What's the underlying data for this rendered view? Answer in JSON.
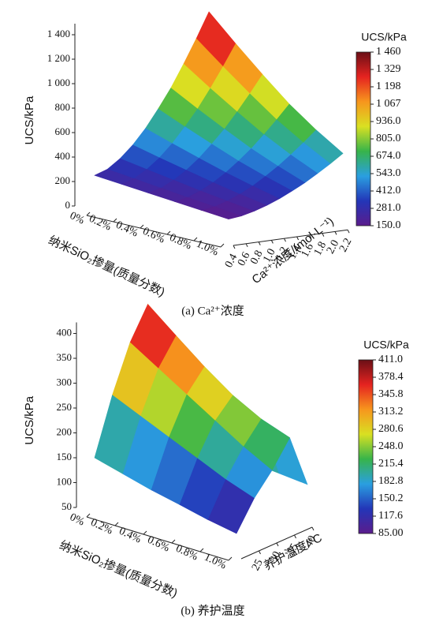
{
  "chart_data": [
    {
      "type": "surface",
      "title": "(a) Ca²⁺浓度",
      "x_label": "纳米SiO₂掺量(质量分数)",
      "y_label": "Ca²⁺浓度/(mol·L⁻¹)",
      "z_label": "UCS/kPa",
      "colorbar_title": "UCS/kPa",
      "x": [
        0,
        0.2,
        0.4,
        0.6,
        0.8,
        1.0
      ],
      "y": [
        0.4,
        0.6,
        0.8,
        1.0,
        1.2,
        1.4,
        1.6,
        1.8,
        2.0,
        2.2
      ],
      "values": [
        [
          250,
          230,
          210,
          190,
          170,
          150
        ],
        [
          286,
          261,
          235,
          210,
          186,
          162
        ],
        [
          359,
          322,
          286,
          250,
          218,
          187
        ],
        [
          456,
          403,
          353,
          304,
          260,
          220
        ],
        [
          577,
          505,
          437,
          371,
          313,
          261
        ],
        [
          722,
          628,
          538,
          451,
          377,
          310
        ],
        [
          879,
          760,
          647,
          538,
          446,
          363
        ],
        [
          1061,
          913,
          773,
          639,
          525,
          425
        ],
        [
          1254,
          1077,
          907,
          746,
          610,
          490
        ],
        [
          1460,
          1250,
          1050,
          860,
          700,
          560
        ]
      ],
      "xlim": [
        0,
        1.0
      ],
      "xticks": [
        {
          "value": 0,
          "label": "0%"
        },
        {
          "value": 0.2,
          "label": "0.2%"
        },
        {
          "value": 0.4,
          "label": "0.4%"
        },
        {
          "value": 0.6,
          "label": "0.6%"
        },
        {
          "value": 0.8,
          "label": "0.8%"
        },
        {
          "value": 1.0,
          "label": "1.0%"
        }
      ],
      "ylim": [
        0.4,
        2.2
      ],
      "yticks": [
        0.4,
        0.6,
        0.8,
        {
          "value": 1.0,
          "label": "1.0"
        },
        1.2,
        1.4,
        1.6,
        1.8,
        {
          "value": 2.0,
          "label": "2.0"
        },
        2.2
      ],
      "zlim": [
        0,
        1500
      ],
      "zticks": [
        0,
        200,
        400,
        600,
        800,
        {
          "value": 1000,
          "label": "1 000"
        },
        {
          "value": 1200,
          "label": "1 200"
        },
        {
          "value": 1400,
          "label": "1 400"
        }
      ],
      "clim": [
        150,
        1460
      ],
      "cticks": [
        {
          "value": 1460,
          "label": "1 460"
        },
        {
          "value": 1329,
          "label": "1 329"
        },
        {
          "value": 1198,
          "label": "1 198"
        },
        {
          "value": 1067,
          "label": "1 067"
        },
        {
          "value": 936,
          "label": "936.0"
        },
        {
          "value": 805,
          "label": "805.0"
        },
        {
          "value": 674,
          "label": "674.0"
        },
        {
          "value": 543,
          "label": "543.0"
        },
        {
          "value": 412,
          "label": "412.0"
        },
        {
          "value": 281,
          "label": "281.0"
        },
        {
          "value": 150,
          "label": "150.0"
        }
      ],
      "colormap": [
        "#5a1c8c",
        "#2336b8",
        "#2a9fe0",
        "#37b44a",
        "#d9e022",
        "#f7961d",
        "#e52320",
        "#6a0f16"
      ]
    },
    {
      "type": "surface",
      "title": "(b) 养护温度",
      "x_label": "纳米SiO₂掺量(质量分数)",
      "y_label": "养护温度/°C",
      "z_label": "UCS/kPa",
      "colorbar_title": "UCS/kPa",
      "x": [
        0,
        0.2,
        0.4,
        0.6,
        0.8,
        1.0
      ],
      "y": [
        20,
        25,
        30,
        35,
        40
      ],
      "values": [
        [
          150,
          135,
          120,
          108,
          95,
          85
        ],
        [
          260,
          235,
          210,
          185,
          160,
          140
        ],
        [
          350,
          315,
          280,
          245,
          210,
          180
        ],
        [
          411,
          365,
          320,
          280,
          250,
          230
        ],
        [
          160,
          150,
          140,
          130,
          125,
          120
        ]
      ],
      "xlim": [
        0,
        1.0
      ],
      "xticks": [
        {
          "value": 0,
          "label": "0%"
        },
        {
          "value": 0.2,
          "label": "0.2%"
        },
        {
          "value": 0.4,
          "label": "0.4%"
        },
        {
          "value": 0.6,
          "label": "0.6%"
        },
        {
          "value": 0.8,
          "label": "0.8%"
        },
        {
          "value": 1.0,
          "label": "1.0%"
        }
      ],
      "ylim": [
        20,
        40
      ],
      "yticks": [
        25,
        30,
        35,
        40
      ],
      "zlim": [
        50,
        420
      ],
      "zticks": [
        50,
        100,
        150,
        200,
        250,
        300,
        350,
        400
      ],
      "clim": [
        85,
        411
      ],
      "cticks": [
        {
          "value": 411,
          "label": "411.0"
        },
        378.4,
        345.8,
        313.2,
        280.6,
        {
          "value": 248,
          "label": "248.0"
        },
        215.4,
        182.8,
        150.2,
        117.6,
        {
          "value": 85,
          "label": "85.00"
        }
      ],
      "colormap": [
        "#5a1c8c",
        "#2336b8",
        "#2a9fe0",
        "#37b44a",
        "#d9e022",
        "#f7961d",
        "#e52320",
        "#6a0f16"
      ]
    }
  ]
}
